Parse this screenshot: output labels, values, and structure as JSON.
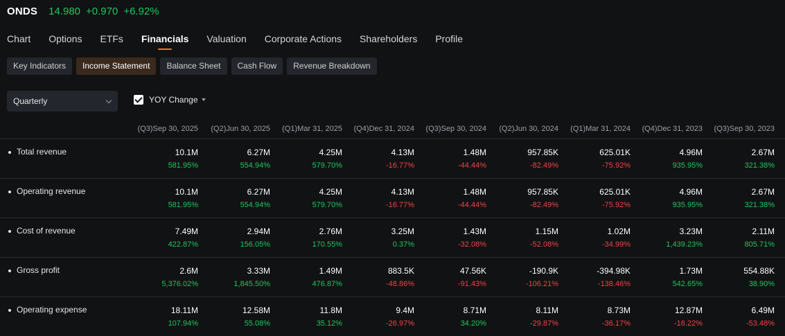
{
  "ticker": {
    "symbol": "ONDS",
    "price": "14.980",
    "change": "+0.970",
    "change_pct": "+6.92%",
    "color_positive": "#22c55e"
  },
  "main_tabs": [
    "Chart",
    "Options",
    "ETFs",
    "Financials",
    "Valuation",
    "Corporate Actions",
    "Shareholders",
    "Profile"
  ],
  "main_tab_active": "Financials",
  "sub_tabs": [
    "Key Indicators",
    "Income Statement",
    "Balance Sheet",
    "Cash Flow",
    "Revenue Breakdown"
  ],
  "sub_tab_active": "Income Statement",
  "period_select": {
    "value": "Quarterly"
  },
  "yoy_toggle": {
    "label": "YOY Change",
    "checked": true
  },
  "columns": [
    "(Q3)Sep 30, 2025",
    "(Q2)Jun 30, 2025",
    "(Q1)Mar 31, 2025",
    "(Q4)Dec 31, 2024",
    "(Q3)Sep 30, 2024",
    "(Q2)Jun 30, 2024",
    "(Q1)Mar 31, 2024",
    "(Q4)Dec 31, 2023",
    "(Q3)Sep 30, 2023"
  ],
  "rows": [
    {
      "label": "Total revenue",
      "values": [
        "10.1M",
        "6.27M",
        "4.25M",
        "4.13M",
        "1.48M",
        "957.85K",
        "625.01K",
        "4.96M",
        "2.67M"
      ],
      "changes": [
        "581.95%",
        "554.94%",
        "579.70%",
        "-16.77%",
        "-44.44%",
        "-82.49%",
        "-75.92%",
        "935.95%",
        "321.38%"
      ]
    },
    {
      "label": "Operating revenue",
      "values": [
        "10.1M",
        "6.27M",
        "4.25M",
        "4.13M",
        "1.48M",
        "957.85K",
        "625.01K",
        "4.96M",
        "2.67M"
      ],
      "changes": [
        "581.95%",
        "554.94%",
        "579.70%",
        "-16.77%",
        "-44.44%",
        "-82.49%",
        "-75.92%",
        "935.95%",
        "321.38%"
      ]
    },
    {
      "label": "Cost of revenue",
      "values": [
        "7.49M",
        "2.94M",
        "2.76M",
        "3.25M",
        "1.43M",
        "1.15M",
        "1.02M",
        "3.23M",
        "2.11M"
      ],
      "changes": [
        "422.87%",
        "156.05%",
        "170.55%",
        "0.37%",
        "-32.08%",
        "-52.08%",
        "-34.99%",
        "1,439.23%",
        "805.71%"
      ]
    },
    {
      "label": "Gross profit",
      "values": [
        "2.6M",
        "3.33M",
        "1.49M",
        "883.5K",
        "47.56K",
        "-190.9K",
        "-394.98K",
        "1.73M",
        "554.88K"
      ],
      "changes": [
        "5,376.02%",
        "1,845.50%",
        "476.87%",
        "-48.86%",
        "-91.43%",
        "-106.21%",
        "-138.46%",
        "542.65%",
        "38.90%"
      ]
    },
    {
      "label": "Operating expense",
      "values": [
        "18.11M",
        "12.58M",
        "11.8M",
        "9.4M",
        "8.71M",
        "8.11M",
        "8.73M",
        "12.87M",
        "6.49M"
      ],
      "changes": [
        "107.94%",
        "55.08%",
        "35.12%",
        "-26.97%",
        "34.20%",
        "-29.87%",
        "-36.17%",
        "-16.22%",
        "-53.48%"
      ]
    }
  ]
}
